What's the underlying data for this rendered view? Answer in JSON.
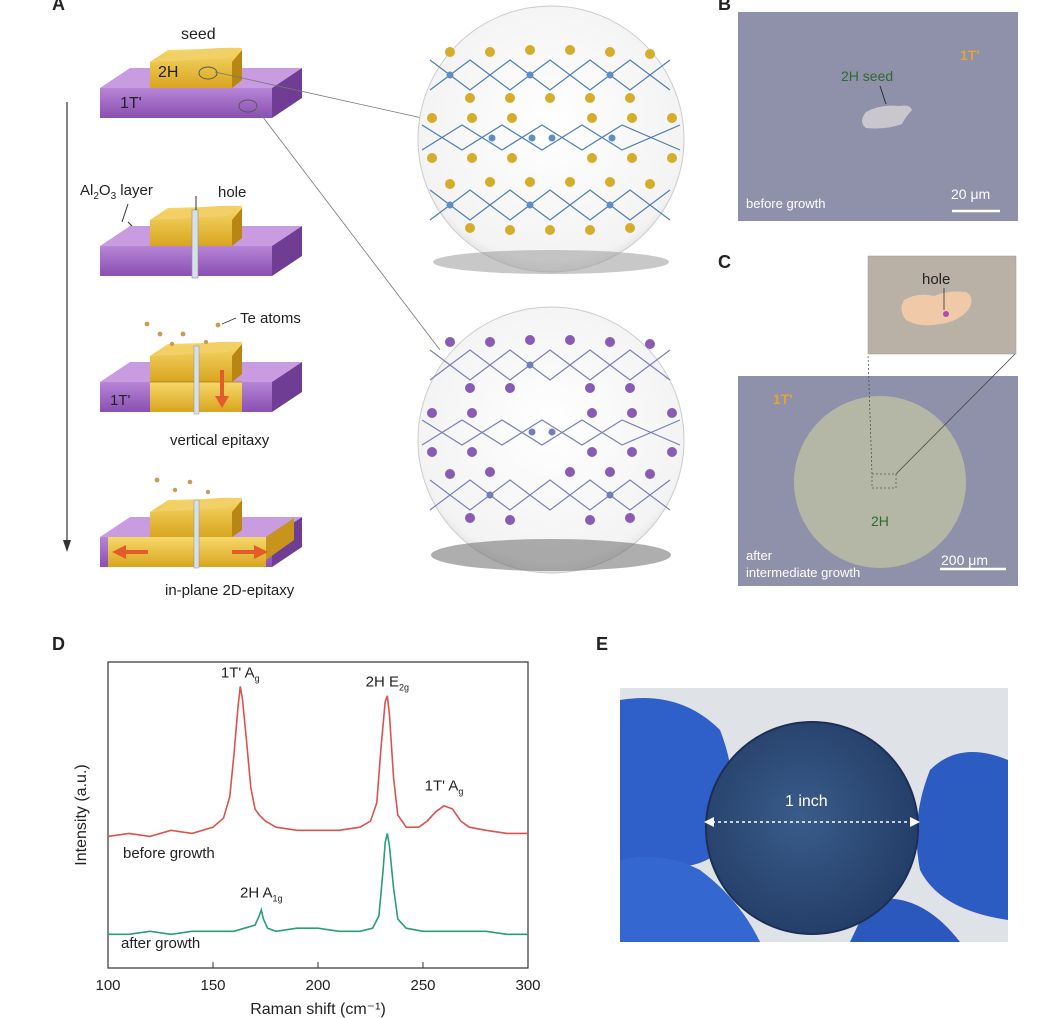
{
  "panels": {
    "a": {
      "letter": "A",
      "seed_label": "seed",
      "seed_phase": "2H",
      "substrate_phase": "1T'",
      "al2o3_main": "Al",
      "al2o3_sub2": "2",
      "al2o3_o": "O",
      "al2o3_sub3": "3",
      "al2o3_rest": " layer",
      "hole_label": "hole",
      "te_label": "Te atoms",
      "substrate_phase_step3": "1T'",
      "vertical_label": "vertical epitaxy",
      "inplane_label": "in-plane 2D-epitaxy"
    },
    "b": {
      "letter": "B",
      "phase_1t": "1T'",
      "seed_label": "2H seed",
      "scale": "20 μm",
      "caption": "before growth"
    },
    "c": {
      "letter": "C",
      "hole_label": "hole",
      "phase_1t": "1T'",
      "phase_2h": "2H",
      "scale": "200 μm",
      "caption_line1": "after",
      "caption_line2": "intermediate growth"
    },
    "d": {
      "letter": "D"
    },
    "e": {
      "letter": "E",
      "wafer_label": "1 inch"
    }
  },
  "colors": {
    "purple": "#8e55b0",
    "gold": "#d9a92a",
    "red_curve": "#d9534f",
    "green_curve": "#2a9d7a",
    "micrograph_bg": "#8c8ea6",
    "glove": "#2f5fc8"
  },
  "chart_data": {
    "type": "line",
    "title": "",
    "xlabel": "Raman shift (cm⁻¹)",
    "ylabel": "Intensity (a.u.)",
    "xlim": [
      100,
      300
    ],
    "ylim": [
      0,
      10
    ],
    "xticks": [
      "100",
      "150",
      "200",
      "250",
      "300"
    ],
    "xtick_values": [
      100,
      150,
      200,
      250,
      300
    ],
    "series": [
      {
        "name": "before growth",
        "color": "#d9534f",
        "x": [
          100,
          110,
          120,
          130,
          140,
          150,
          155,
          158,
          160,
          162,
          163,
          164,
          166,
          168,
          170,
          172,
          175,
          180,
          190,
          200,
          210,
          220,
          225,
          228,
          230,
          232,
          233,
          234,
          236,
          238,
          242,
          248,
          252,
          256,
          260,
          264,
          268,
          272,
          280,
          290,
          300
        ],
        "y": [
          4.3,
          4.4,
          4.3,
          4.5,
          4.4,
          4.6,
          4.9,
          5.6,
          7.0,
          8.6,
          9.2,
          8.8,
          7.4,
          5.9,
          5.2,
          5.0,
          4.8,
          4.6,
          4.5,
          4.5,
          4.5,
          4.6,
          4.8,
          5.4,
          7.2,
          8.7,
          8.9,
          8.3,
          6.2,
          5.0,
          4.6,
          4.6,
          4.8,
          5.1,
          5.3,
          5.2,
          4.8,
          4.6,
          4.5,
          4.4,
          4.4
        ]
      },
      {
        "name": "after growth",
        "color": "#2a9d7a",
        "x": [
          100,
          110,
          120,
          130,
          140,
          150,
          160,
          165,
          170,
          172,
          173,
          174,
          176,
          180,
          190,
          200,
          210,
          220,
          226,
          229,
          231,
          232,
          233,
          234,
          236,
          238,
          242,
          250,
          260,
          270,
          280,
          290,
          300
        ],
        "y": [
          1.1,
          1.1,
          1.2,
          1.1,
          1.2,
          1.2,
          1.2,
          1.3,
          1.4,
          1.7,
          1.9,
          1.6,
          1.3,
          1.2,
          1.3,
          1.3,
          1.2,
          1.2,
          1.3,
          1.7,
          3.2,
          4.1,
          4.4,
          4.0,
          2.6,
          1.6,
          1.3,
          1.2,
          1.2,
          1.2,
          1.2,
          1.1,
          1.1
        ]
      }
    ],
    "annotations": [
      {
        "text": "1T' A",
        "sub": "g",
        "x": 163,
        "y": 9.5
      },
      {
        "text": "2H E",
        "sub": "2g",
        "x": 233,
        "y": 9.2
      },
      {
        "text": "1T' A",
        "sub": "g",
        "x": 260,
        "y": 5.8
      },
      {
        "text": "2H A",
        "sub": "1g",
        "x": 173,
        "y": 2.3
      }
    ],
    "series_labels": [
      "before growth",
      "after growth"
    ]
  }
}
